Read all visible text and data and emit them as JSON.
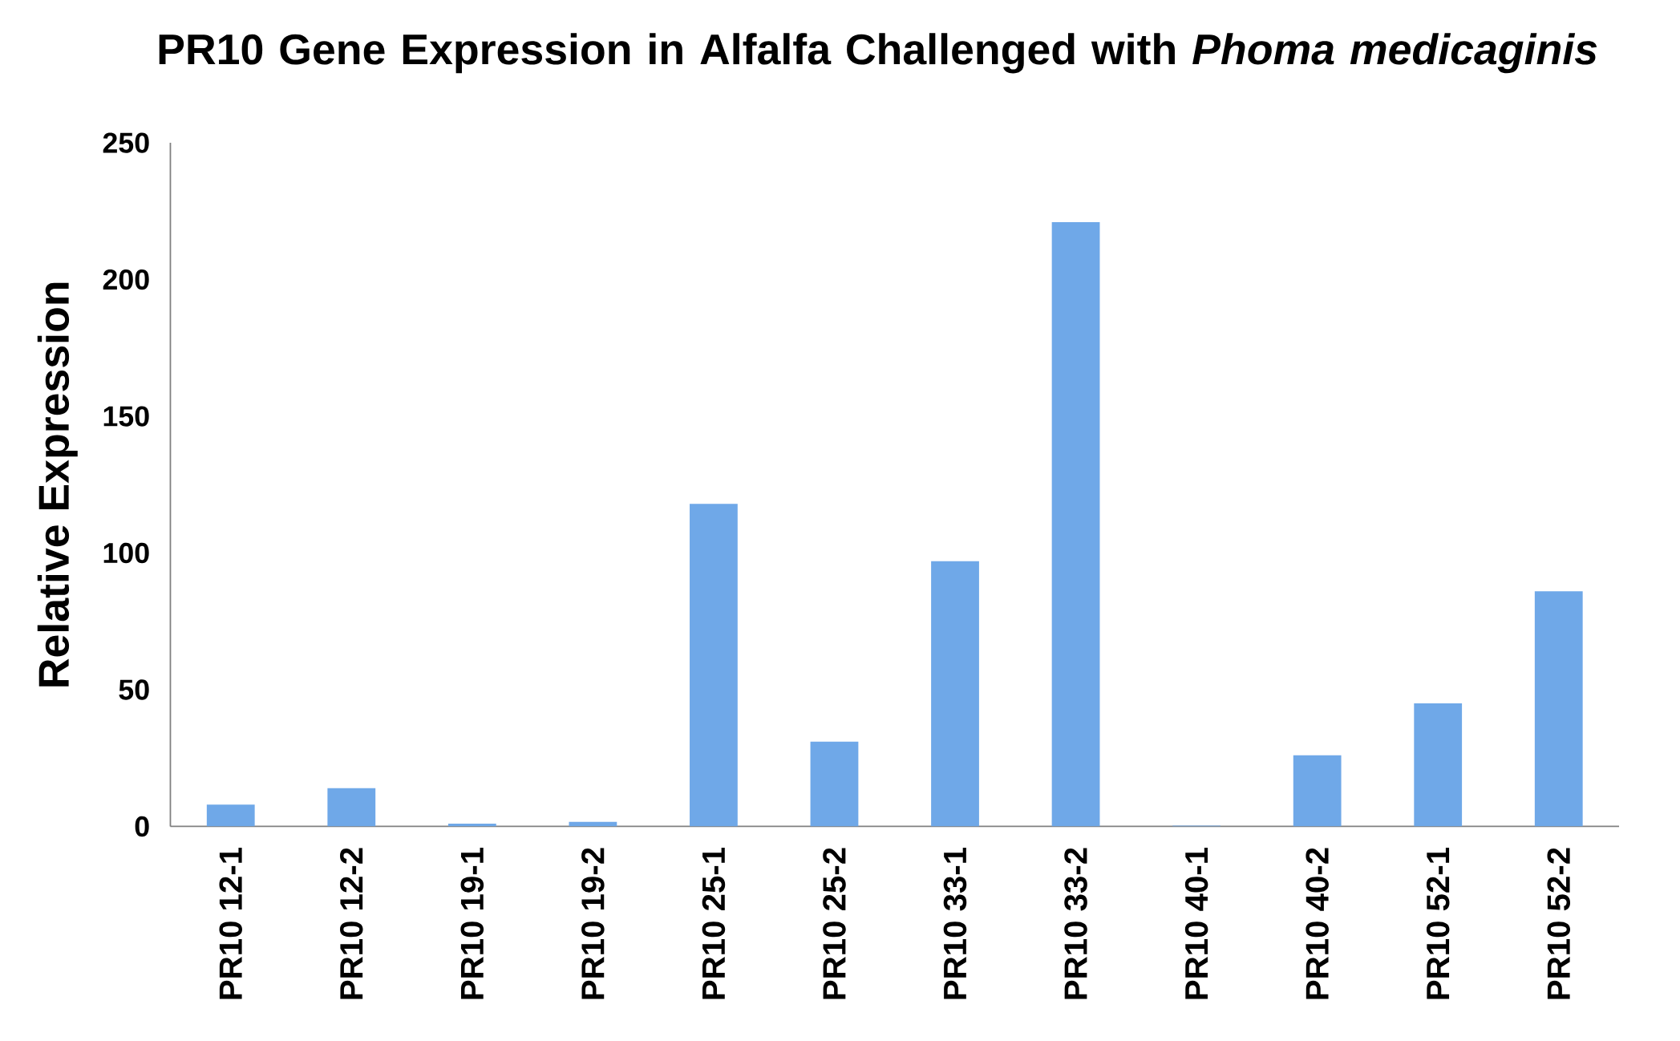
{
  "chart_data": {
    "type": "bar",
    "title": "PR10 Gene Expression in Alfalfa Challenged with *Phoma medicaginis*",
    "ylabel": "Relative Expression",
    "categories": [
      "PR10 12-1",
      "PR10 12-2",
      "PR10 19-1",
      "PR10 19-2",
      "PR10 25-1",
      "PR10 25-2",
      "PR10 33-1",
      "PR10 33-2",
      "PR10 40-1",
      "PR10 40-2",
      "PR10 52-1",
      "PR10 52-2"
    ],
    "values": [
      8,
      14,
      1,
      1.7,
      118,
      31,
      97,
      221,
      0.3,
      26,
      45,
      86
    ],
    "color": "#6fa8e8",
    "ylim": [
      0,
      250
    ],
    "yticks": [
      0,
      50,
      100,
      150,
      200,
      250
    ]
  }
}
